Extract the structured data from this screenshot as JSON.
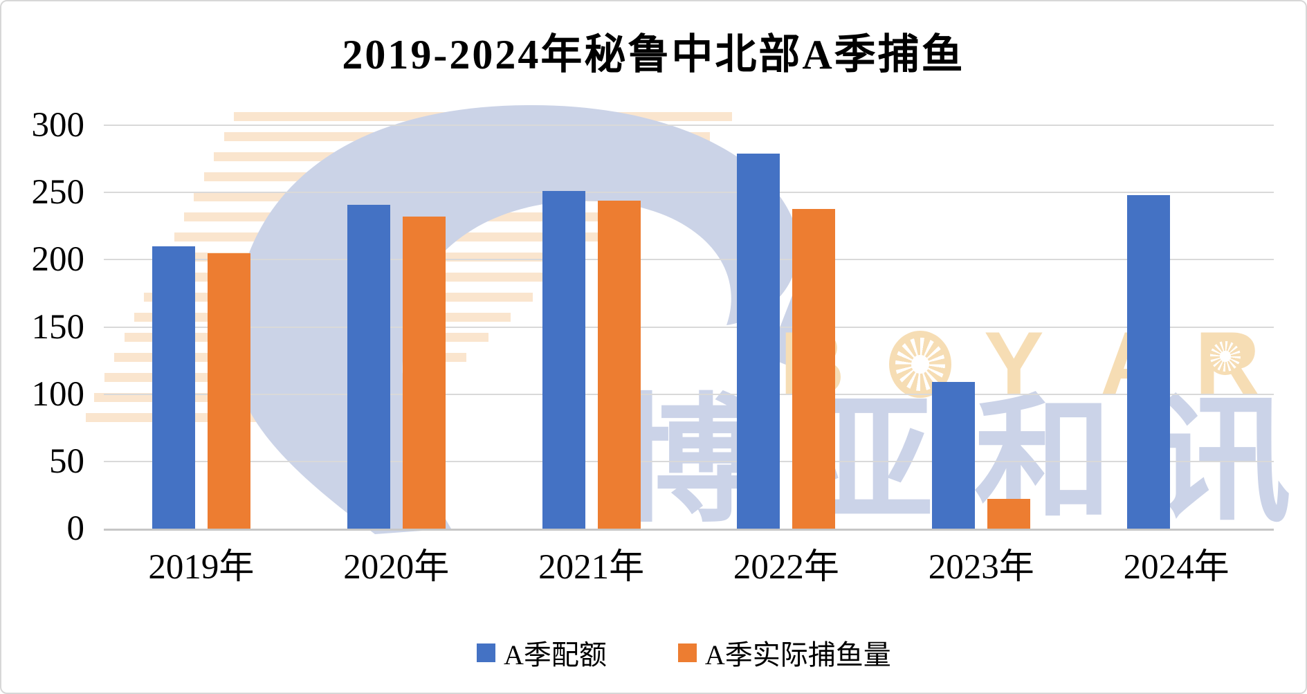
{
  "title": "2019-2024年秘鲁中北部A季捕鱼",
  "chart_data": {
    "type": "bar",
    "categories": [
      "2019年",
      "2020年",
      "2021年",
      "2022年",
      "2023年",
      "2024年"
    ],
    "series": [
      {
        "name": "A季配额",
        "color": "#4472C4",
        "values": [
          210,
          241,
          251,
          279,
          109,
          248
        ]
      },
      {
        "name": "A季实际捕鱼量",
        "color": "#ED7D31",
        "values": [
          205,
          232,
          244,
          238,
          22,
          null
        ]
      }
    ],
    "ylim": [
      0,
      300
    ],
    "yticks": [
      0,
      50,
      100,
      150,
      200,
      250,
      300
    ],
    "grid": true,
    "legend_position": "bottom",
    "gridline_color": "#D9D9D9",
    "axis_line_color": "#C6C6C6"
  },
  "watermark": {
    "brand_text": "BOYAR",
    "brand_letters": [
      "B",
      "Y",
      "A",
      "R"
    ],
    "cjk_text": "博亚和讯",
    "brand_color": "#F6DDB4",
    "logo_blue": "#CBD3E7",
    "stripe_color": "#F9DFC2"
  }
}
